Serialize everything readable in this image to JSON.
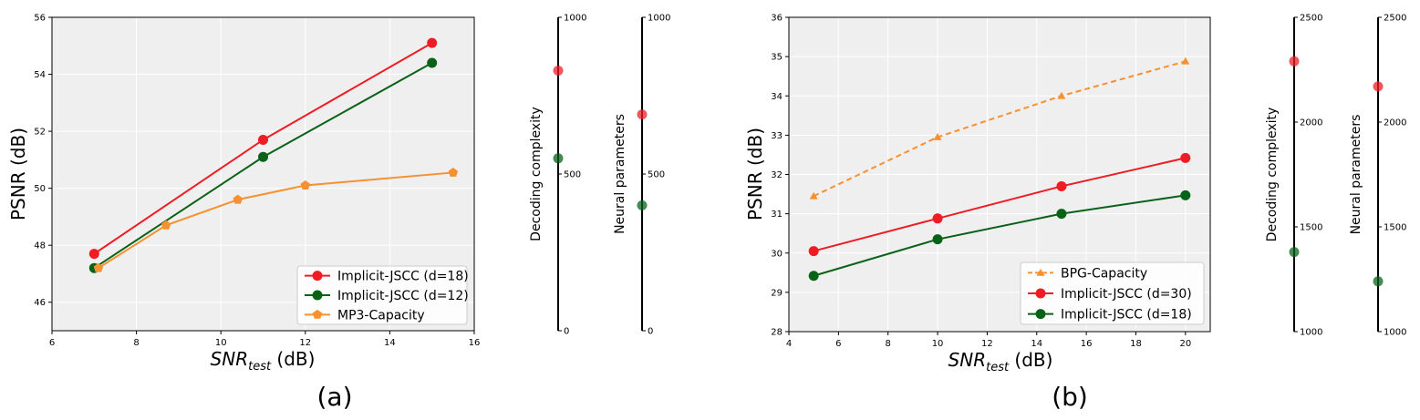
{
  "colors": {
    "red": "#ee1c24",
    "green": "#0a6218",
    "orange": "#f7902f",
    "plot_bg": "#efefef",
    "grid": "#ffffff"
  },
  "panels": [
    {
      "label": "(a)",
      "xlabel_main": "SNR",
      "xlabel_sub": "test",
      "xlabel_unit": " (dB)",
      "ylabel": "PSNR (dB)",
      "xticks": [
        "6",
        "8",
        "10",
        "12",
        "14",
        "16"
      ],
      "yticks": [
        "46",
        "48",
        "50",
        "52",
        "54",
        "56"
      ],
      "legend": [
        {
          "name": "Implicit-JSCC (d=18)"
        },
        {
          "name": "Implicit-JSCC (d=12)"
        },
        {
          "name": "MP3-Capacity"
        }
      ],
      "side_axes": [
        {
          "label": "Decoding complexity",
          "ticks": [
            "0",
            "500",
            "1000"
          ],
          "markers": [
            {
              "series": "red",
              "value": 830
            },
            {
              "series": "green",
              "value": 550
            }
          ]
        },
        {
          "label": "Neural parameters",
          "ticks": [
            "0",
            "500",
            "1000"
          ],
          "markers": [
            {
              "series": "red",
              "value": 690
            },
            {
              "series": "green",
              "value": 400
            }
          ]
        }
      ]
    },
    {
      "label": "(b)",
      "xlabel_main": "SNR",
      "xlabel_sub": "test",
      "xlabel_unit": " (dB)",
      "ylabel": "PSNR (dB)",
      "xticks": [
        "4",
        "6",
        "8",
        "10",
        "12",
        "14",
        "16",
        "18",
        "20"
      ],
      "yticks": [
        "28",
        "29",
        "30",
        "31",
        "32",
        "33",
        "34",
        "35",
        "36"
      ],
      "legend": [
        {
          "name": "BPG-Capacity"
        },
        {
          "name": "Implicit-JSCC (d=30)"
        },
        {
          "name": "Implicit-JSCC (d=18)"
        }
      ],
      "side_axes": [
        {
          "label": "Decoding complexity",
          "ticks": [
            "1000",
            "1500",
            "2000",
            "2500"
          ],
          "markers": [
            {
              "series": "red",
              "value": 2290
            },
            {
              "series": "green",
              "value": 1380
            }
          ]
        },
        {
          "label": "Neural parameters",
          "ticks": [
            "1000",
            "1500",
            "2000",
            "2500"
          ],
          "markers": [
            {
              "series": "red",
              "value": 2170
            },
            {
              "series": "green",
              "value": 1240
            }
          ]
        }
      ]
    }
  ],
  "chart_data": [
    {
      "type": "line",
      "title": "(a)",
      "xlabel": "SNR_test (dB)",
      "ylabel": "PSNR (dB)",
      "xlim": [
        6,
        16
      ],
      "ylim": [
        45,
        56
      ],
      "grid": true,
      "legend_position": "bottom-right",
      "series": [
        {
          "name": "Implicit-JSCC (d=18)",
          "color": "red",
          "marker": "circle",
          "dashed": false,
          "x": [
            7,
            11,
            15
          ],
          "y": [
            47.7,
            51.7,
            55.1
          ]
        },
        {
          "name": "Implicit-JSCC (d=12)",
          "color": "green",
          "marker": "circle",
          "dashed": false,
          "x": [
            7,
            11,
            15
          ],
          "y": [
            47.2,
            51.1,
            54.4
          ]
        },
        {
          "name": "MP3-Capacity",
          "color": "orange",
          "marker": "pentagon",
          "dashed": false,
          "x": [
            7.1,
            8.7,
            10.4,
            12,
            15.5
          ],
          "y": [
            47.2,
            48.7,
            49.6,
            50.1,
            50.55
          ]
        }
      ],
      "side_axes": [
        {
          "label": "Decoding complexity",
          "ylim": [
            0,
            1000
          ],
          "values": {
            "Implicit-JSCC (d=18)": 830,
            "Implicit-JSCC (d=12)": 550
          }
        },
        {
          "label": "Neural parameters",
          "ylim": [
            0,
            1000
          ],
          "values": {
            "Implicit-JSCC (d=18)": 690,
            "Implicit-JSCC (d=12)": 400
          }
        }
      ]
    },
    {
      "type": "line",
      "title": "(b)",
      "xlabel": "SNR_test (dB)",
      "ylabel": "PSNR (dB)",
      "xlim": [
        4,
        21
      ],
      "ylim": [
        28,
        36
      ],
      "grid": true,
      "legend_position": "bottom-right",
      "series": [
        {
          "name": "BPG-Capacity",
          "color": "orange",
          "marker": "triangle",
          "dashed": true,
          "x": [
            5,
            10,
            15,
            20
          ],
          "y": [
            31.45,
            32.95,
            34.0,
            34.88
          ]
        },
        {
          "name": "Implicit-JSCC (d=30)",
          "color": "red",
          "marker": "circle",
          "dashed": false,
          "x": [
            5,
            10,
            15,
            20
          ],
          "y": [
            30.05,
            30.88,
            31.7,
            32.42
          ]
        },
        {
          "name": "Implicit-JSCC (d=18)",
          "color": "green",
          "marker": "circle",
          "dashed": false,
          "x": [
            5,
            10,
            15,
            20
          ],
          "y": [
            29.42,
            30.35,
            31.0,
            31.47
          ]
        }
      ],
      "side_axes": [
        {
          "label": "Decoding complexity",
          "ylim": [
            1000,
            2500
          ],
          "values": {
            "Implicit-JSCC (d=30)": 2290,
            "Implicit-JSCC (d=18)": 1380
          }
        },
        {
          "label": "Neural parameters",
          "ylim": [
            1000,
            2500
          ],
          "values": {
            "Implicit-JSCC (d=30)": 2170,
            "Implicit-JSCC (d=18)": 1240
          }
        }
      ]
    }
  ]
}
